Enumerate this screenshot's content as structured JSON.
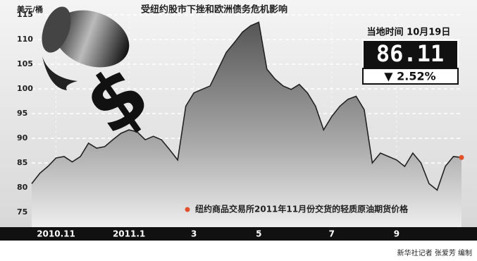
{
  "chart_data": {
    "type": "area",
    "title": "受纽约股市下挫和欧洲债务危机影响",
    "y_label": "美元/桶",
    "annotations": {
      "date": "当地时间 10月19日",
      "price": "86.11",
      "change": "▼ 2.52%"
    },
    "legend_note": "纽约商品交易所2011年11月份交货的轻质原油期货价格",
    "source": "新华社记者 张爱芳 编制",
    "categories": [
      null,
      null,
      null,
      "2010.11",
      null,
      null,
      null,
      null,
      null,
      null,
      null,
      null,
      "2011.1",
      null,
      null,
      null,
      null,
      null,
      null,
      null,
      "3",
      null,
      null,
      null,
      null,
      null,
      null,
      null,
      "5",
      null,
      null,
      null,
      null,
      null,
      null,
      null,
      null,
      "7",
      null,
      null,
      null,
      null,
      null,
      null,
      null,
      "9",
      null,
      null,
      null,
      null,
      null,
      null,
      null,
      null
    ],
    "series": [
      {
        "name": "轻质原油期货价格",
        "color": "#222222",
        "values": [
          80.8,
          82.9,
          84.3,
          86,
          86.3,
          85.2,
          86.3,
          89,
          88,
          88.3,
          89.7,
          91,
          91.7,
          91.3,
          89.7,
          90.4,
          89.7,
          87.7,
          85.6,
          96.5,
          99.2,
          99.9,
          100.6,
          104,
          107.4,
          109.4,
          111.5,
          112.8,
          113.5,
          104,
          102,
          100.6,
          99.9,
          100.9,
          99.2,
          96.5,
          91.7,
          94.4,
          96.5,
          97.9,
          98.5,
          95.8,
          85,
          87,
          86.3,
          85.6,
          84.3,
          87,
          85,
          80.8,
          79.5,
          84.3,
          86.3,
          86.11
        ]
      }
    ],
    "ylim": [
      74,
      116
    ],
    "yticks": [
      75,
      80,
      85,
      90,
      95,
      100,
      105,
      110,
      115
    ],
    "grid": true,
    "marker_color": "#e0502a"
  }
}
